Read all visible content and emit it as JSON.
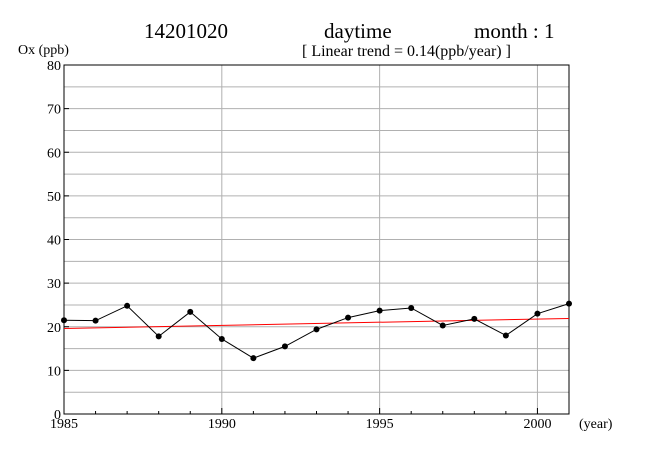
{
  "header": {
    "station": "14201020",
    "period": "daytime",
    "month": "month : 1",
    "trend": "[ Linear trend = 0.14(ppb/year) ]"
  },
  "chart_data": {
    "type": "line",
    "ylabel": "Ox (ppb)",
    "xlabel": "(year)",
    "xlim": [
      1985,
      2001
    ],
    "ylim": [
      0,
      80
    ],
    "xticks": [
      1985,
      1990,
      1995,
      2000
    ],
    "yticks": [
      0,
      10,
      20,
      30,
      40,
      50,
      60,
      70,
      80
    ],
    "grid": true,
    "series": [
      {
        "x": [
          1985,
          1986,
          1987,
          1988,
          1989,
          1990,
          1991,
          1992,
          1993,
          1994,
          1995,
          1996,
          1997,
          1998,
          1999,
          2000,
          2001
        ],
        "values": [
          21.5,
          21.4,
          24.8,
          17.8,
          23.4,
          17.2,
          12.8,
          15.5,
          19.4,
          22.1,
          23.7,
          24.3,
          20.3,
          21.8,
          18.0,
          23.0,
          25.3
        ],
        "color": "#000000"
      }
    ],
    "trend_line": {
      "x": [
        1985,
        2001
      ],
      "y": [
        19.6,
        21.9
      ],
      "color": "#ff0000"
    }
  }
}
